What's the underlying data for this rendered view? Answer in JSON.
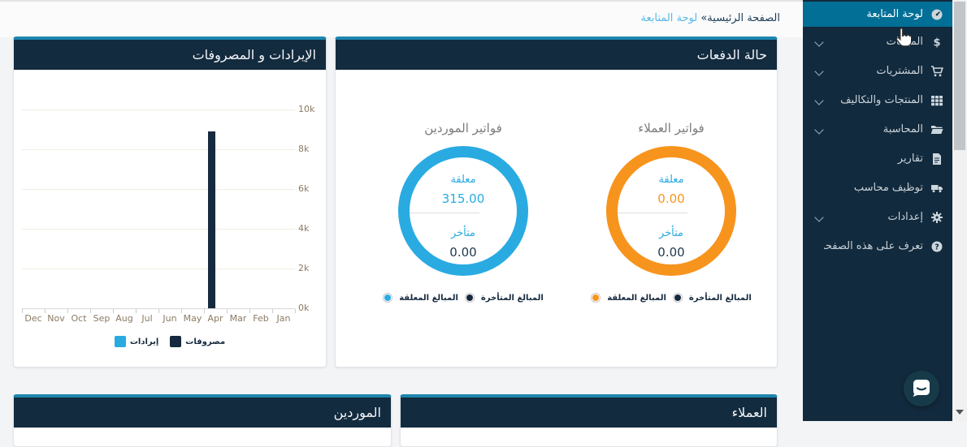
{
  "breadcrumb": {
    "home": "الصفحة الرئيسية",
    "separator": "»",
    "current": "لوحة المتابعة"
  },
  "sidebar": {
    "bg_color": "#122a3d",
    "active_color": "#026f96",
    "items": [
      {
        "label": "لوحة المتابعة",
        "icon": "gauge-icon",
        "active": true,
        "has_submenu": false
      },
      {
        "label": "المبيعات",
        "icon": "dollar-icon",
        "active": false,
        "has_submenu": true
      },
      {
        "label": "المشتريات",
        "icon": "cart-icon",
        "active": false,
        "has_submenu": true
      },
      {
        "label": "المنتجات والتكاليف",
        "icon": "grid-icon",
        "active": false,
        "has_submenu": true
      },
      {
        "label": "المحاسبة",
        "icon": "folder-icon",
        "active": false,
        "has_submenu": true
      },
      {
        "label": "تقارير",
        "icon": "report-icon",
        "active": false,
        "has_submenu": false
      },
      {
        "label": "توظيف محاسب",
        "icon": "truck-icon",
        "active": false,
        "has_submenu": false
      },
      {
        "label": "إعدادات",
        "icon": "gear-icon",
        "active": false,
        "has_submenu": true
      },
      {
        "label": "تعرف على هذه الصفحة",
        "icon": "question-icon",
        "active": false,
        "has_submenu": false
      }
    ]
  },
  "revenue_expenses_card": {
    "title": "الإيرادات و المصروفات"
  },
  "payments_card": {
    "title": "حالة الدفعات"
  },
  "suppliers_card": {
    "title": "الموردين"
  },
  "customers_card": {
    "title": "العملاء"
  },
  "chart_data": [
    {
      "type": "bar",
      "title": "الإيرادات و المصروفات",
      "categories": [
        "Jan",
        "Feb",
        "Mar",
        "Apr",
        "May",
        "Jun",
        "Jul",
        "Aug",
        "Sep",
        "Oct",
        "Nov",
        "Dec"
      ],
      "rtl_axis": true,
      "series": [
        {
          "name": "إيرادات",
          "color": "#29abe2",
          "values": [
            0,
            0,
            0,
            0,
            0,
            0,
            0,
            0,
            0,
            0,
            0,
            0
          ]
        },
        {
          "name": "مصروفات",
          "color": "#16293e",
          "values": [
            0,
            0,
            0,
            8900,
            0,
            0,
            0,
            0,
            0,
            0,
            0,
            0
          ]
        }
      ],
      "ylim": [
        0,
        10000
      ],
      "yticks": [
        "0k",
        "2k",
        "4k",
        "6k",
        "8k",
        "10k"
      ],
      "grid": true,
      "legend_position": "bottom"
    },
    {
      "type": "donut",
      "title": "فواتير الموردين",
      "color": "#29abe2",
      "center": {
        "pending_label": "معلقة",
        "pending_value": "315.00",
        "late_label": "متأخر",
        "late_value": "0.00"
      },
      "slices": [
        {
          "label": "المبالغ المعلقة",
          "value": 315.0,
          "color": "#29abe2"
        },
        {
          "label": "المبالغ المتأخرة",
          "value": 0.0,
          "color": "#16293e"
        }
      ]
    },
    {
      "type": "donut",
      "title": "فواتير العملاء",
      "color": "#f7941d",
      "center": {
        "pending_label": "معلقة",
        "pending_value": "0.00",
        "late_label": "متأخر",
        "late_value": "0.00"
      },
      "slices": [
        {
          "label": "المبالغ المعلقة",
          "value": 0.0,
          "color": "#f7941d"
        },
        {
          "label": "المبالغ المتأخرة",
          "value": 0.0,
          "color": "#16293e"
        }
      ]
    }
  ]
}
